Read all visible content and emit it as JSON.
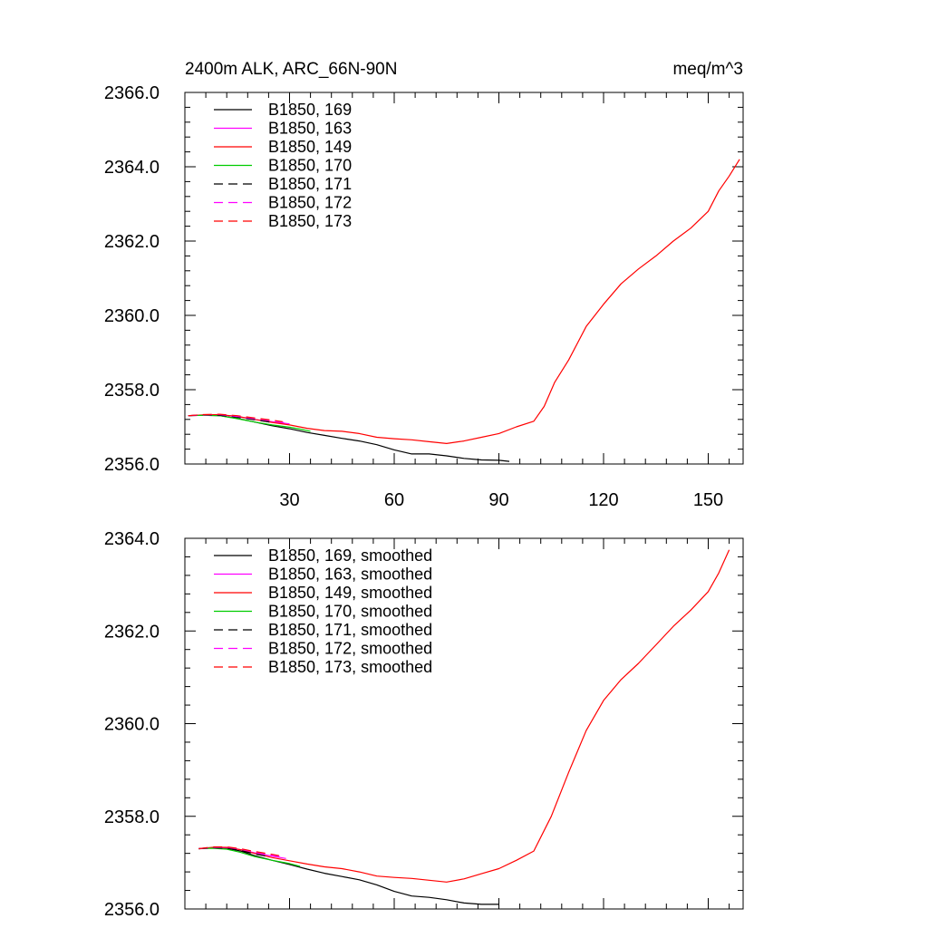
{
  "chart_data": [
    {
      "type": "line",
      "title": "2400m ALK, ARC_66N-90N",
      "units": "meq/m^3",
      "xlabel": "",
      "ylabel": "",
      "xlim": [
        0,
        160
      ],
      "ylim": [
        2356.0,
        2366.0
      ],
      "x_ticks": [
        30,
        60,
        90,
        120,
        150
      ],
      "x_tick_labels": [
        "30",
        "60",
        "90",
        "120",
        "150"
      ],
      "y_ticks": [
        2356.0,
        2358.0,
        2360.0,
        2362.0,
        2364.0,
        2366.0
      ],
      "y_tick_labels": [
        "2356.0",
        "2358.0",
        "2360.0",
        "2362.0",
        "2364.0",
        "2366.0"
      ],
      "grid": false,
      "legend_position": "top-left",
      "series": [
        {
          "name": "B1850, 169",
          "color": "#000000",
          "dash": "solid",
          "x": [
            1,
            5,
            10,
            15,
            20,
            25,
            30,
            35,
            40,
            45,
            50,
            55,
            60,
            65,
            70,
            75,
            80,
            85,
            90,
            93
          ],
          "y": [
            2357.3,
            2357.31,
            2357.3,
            2357.23,
            2357.13,
            2357.03,
            2356.95,
            2356.85,
            2356.77,
            2356.69,
            2356.62,
            2356.52,
            2356.38,
            2356.27,
            2356.27,
            2356.22,
            2356.15,
            2356.11,
            2356.1,
            2356.07
          ]
        },
        {
          "name": "B1850, 163",
          "color": "#ff00ff",
          "dash": "solid",
          "x": [
            1,
            5,
            10,
            15,
            20,
            25,
            30
          ],
          "y": [
            2357.3,
            2357.31,
            2357.32,
            2357.28,
            2357.2,
            2357.14,
            2357.08
          ]
        },
        {
          "name": "B1850, 149",
          "color": "#ff0000",
          "dash": "solid",
          "x": [
            1,
            5,
            10,
            15,
            20,
            25,
            30,
            35,
            40,
            45,
            50,
            55,
            60,
            65,
            70,
            75,
            80,
            85,
            90,
            95,
            100,
            103,
            106,
            110,
            115,
            120,
            125,
            130,
            135,
            140,
            145,
            150,
            153,
            156,
            159
          ],
          "y": [
            2357.3,
            2357.32,
            2357.33,
            2357.28,
            2357.2,
            2357.12,
            2357.05,
            2356.96,
            2356.9,
            2356.88,
            2356.82,
            2356.72,
            2356.68,
            2356.65,
            2356.6,
            2356.55,
            2356.62,
            2356.72,
            2356.82,
            2357.0,
            2357.15,
            2357.55,
            2358.2,
            2358.8,
            2359.7,
            2360.3,
            2360.85,
            2361.25,
            2361.6,
            2362.0,
            2362.35,
            2362.8,
            2363.35,
            2363.75,
            2364.2
          ]
        },
        {
          "name": "B1850, 170",
          "color": "#00cc00",
          "dash": "solid",
          "x": [
            1,
            5,
            10,
            15,
            20,
            25,
            30,
            33,
            36
          ],
          "y": [
            2357.3,
            2357.31,
            2357.3,
            2357.22,
            2357.13,
            2357.05,
            2356.99,
            2356.94,
            2356.88
          ]
        },
        {
          "name": "B1850, 171",
          "color": "#000000",
          "dash": "dashed",
          "x": [
            1,
            5,
            10,
            15,
            20,
            25
          ],
          "y": [
            2357.3,
            2357.32,
            2357.31,
            2357.26,
            2357.19,
            2357.12
          ]
        },
        {
          "name": "B1850, 172",
          "color": "#ff00ff",
          "dash": "dashed",
          "x": [
            1,
            5,
            10,
            15,
            20,
            25,
            29
          ],
          "y": [
            2357.3,
            2357.32,
            2357.33,
            2357.28,
            2357.22,
            2357.16,
            2357.11
          ]
        },
        {
          "name": "B1850, 173",
          "color": "#ff0000",
          "dash": "dashed",
          "x": [
            1,
            5,
            10,
            15,
            20,
            25,
            28
          ],
          "y": [
            2357.3,
            2357.33,
            2357.34,
            2357.3,
            2357.24,
            2357.18,
            2357.14
          ]
        }
      ]
    },
    {
      "type": "line",
      "title": "",
      "xlabel": "",
      "ylabel": "",
      "xlim": [
        0,
        160
      ],
      "ylim": [
        2356.0,
        2364.0
      ],
      "x_ticks": [
        30,
        60,
        90,
        120,
        150
      ],
      "y_ticks": [
        2356.0,
        2358.0,
        2360.0,
        2362.0,
        2364.0
      ],
      "y_tick_labels": [
        "2356.0",
        "2358.0",
        "2360.0",
        "2362.0",
        "2364.0"
      ],
      "grid": false,
      "legend_position": "top-left",
      "series": [
        {
          "name": "B1850, 169, smoothed",
          "color": "#000000",
          "dash": "solid",
          "x": [
            4,
            8,
            12,
            16,
            20,
            25,
            30,
            35,
            40,
            45,
            50,
            55,
            60,
            65,
            70,
            75,
            80,
            85,
            90
          ],
          "y": [
            2357.3,
            2357.32,
            2357.31,
            2357.25,
            2357.15,
            2357.05,
            2356.96,
            2356.86,
            2356.77,
            2356.7,
            2356.63,
            2356.52,
            2356.38,
            2356.28,
            2356.25,
            2356.2,
            2356.13,
            2356.1,
            2356.1
          ]
        },
        {
          "name": "B1850, 163, smoothed",
          "color": "#ff00ff",
          "dash": "solid",
          "x": [
            4,
            8,
            12,
            16,
            20,
            25,
            29
          ],
          "y": [
            2357.3,
            2357.32,
            2357.32,
            2357.28,
            2357.21,
            2357.14,
            2357.09
          ]
        },
        {
          "name": "B1850, 149, smoothed",
          "color": "#ff0000",
          "dash": "solid",
          "x": [
            4,
            8,
            12,
            16,
            20,
            25,
            30,
            35,
            40,
            45,
            50,
            55,
            60,
            65,
            70,
            75,
            80,
            85,
            90,
            95,
            100,
            105,
            110,
            115,
            120,
            125,
            130,
            135,
            140,
            145,
            150,
            153,
            156
          ],
          "y": [
            2357.3,
            2357.33,
            2357.33,
            2357.28,
            2357.2,
            2357.11,
            2357.04,
            2356.97,
            2356.91,
            2356.87,
            2356.8,
            2356.71,
            2356.68,
            2356.66,
            2356.62,
            2356.58,
            2356.65,
            2356.76,
            2356.87,
            2357.05,
            2357.25,
            2358.0,
            2358.95,
            2359.85,
            2360.5,
            2360.95,
            2361.3,
            2361.7,
            2362.1,
            2362.45,
            2362.85,
            2363.25,
            2363.75
          ]
        },
        {
          "name": "B1850, 170, smoothed",
          "color": "#00cc00",
          "dash": "solid",
          "x": [
            4,
            8,
            12,
            16,
            20,
            25,
            30,
            33
          ],
          "y": [
            2357.3,
            2357.31,
            2357.29,
            2357.22,
            2357.13,
            2357.05,
            2356.98,
            2356.92
          ]
        },
        {
          "name": "B1850, 171, smoothed",
          "color": "#000000",
          "dash": "dashed",
          "x": [
            4,
            8,
            12,
            16,
            20,
            24
          ],
          "y": [
            2357.3,
            2357.32,
            2357.31,
            2357.26,
            2357.19,
            2357.13
          ]
        },
        {
          "name": "B1850, 172, smoothed",
          "color": "#ff00ff",
          "dash": "dashed",
          "x": [
            4,
            8,
            12,
            16,
            20,
            25,
            28
          ],
          "y": [
            2357.3,
            2357.33,
            2357.33,
            2357.29,
            2357.22,
            2357.16,
            2357.12
          ]
        },
        {
          "name": "B1850, 173, smoothed",
          "color": "#ff0000",
          "dash": "dashed",
          "x": [
            4,
            8,
            12,
            16,
            20,
            25,
            27
          ],
          "y": [
            2357.3,
            2357.34,
            2357.34,
            2357.3,
            2357.24,
            2357.18,
            2357.15
          ]
        }
      ]
    }
  ]
}
